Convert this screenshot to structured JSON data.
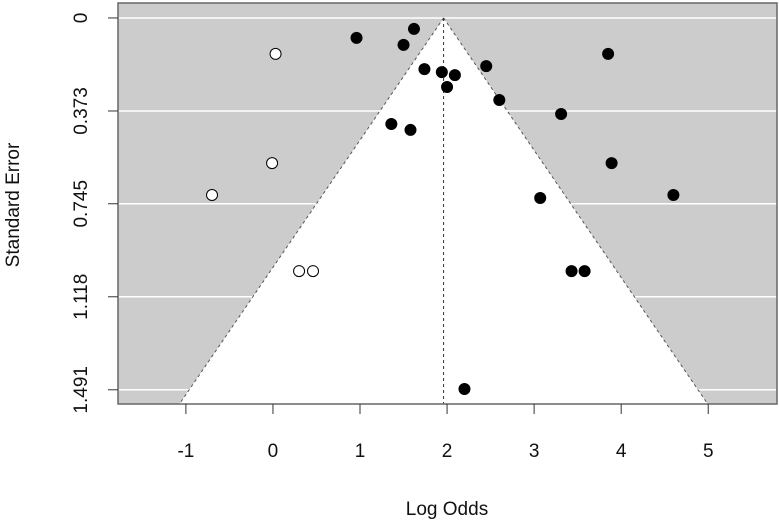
{
  "chart_data": {
    "type": "funnel",
    "x_label": "Log Odds",
    "y_label": "Standard Error",
    "xlim": [
      -1.78,
      5.79
    ],
    "ylim": [
      1.548,
      -0.06
    ],
    "xticks": [
      -1,
      0,
      1,
      2,
      3,
      4,
      5
    ],
    "yticks": [
      0,
      0.373,
      0.745,
      1.118,
      1.491
    ],
    "grid": true,
    "background": "#cccccc",
    "funnel": {
      "center": 1.96,
      "z": 1.96,
      "color": "#ffffff"
    },
    "series": [
      {
        "color": "#000000",
        "filled": true,
        "x": [
          0.96,
          1.62,
          1.5,
          1.74,
          1.94,
          2.09,
          2.0,
          2.45,
          2.6,
          3.85,
          3.31,
          1.36,
          1.58,
          3.89,
          3.07,
          4.6,
          3.43,
          3.58,
          2.2
        ],
        "values": [
          0.08,
          0.044,
          0.108,
          0.205,
          0.217,
          0.229,
          0.277,
          0.193,
          0.329,
          0.144,
          0.385,
          0.425,
          0.449,
          0.582,
          0.722,
          0.71,
          1.015,
          1.015,
          1.488
        ]
      },
      {
        "color": "#000000",
        "filled": false,
        "x": [
          0.03,
          -0.01,
          -0.7,
          0.3,
          0.46
        ],
        "values": [
          0.144,
          0.582,
          0.71,
          1.015,
          1.015
        ]
      }
    ]
  }
}
